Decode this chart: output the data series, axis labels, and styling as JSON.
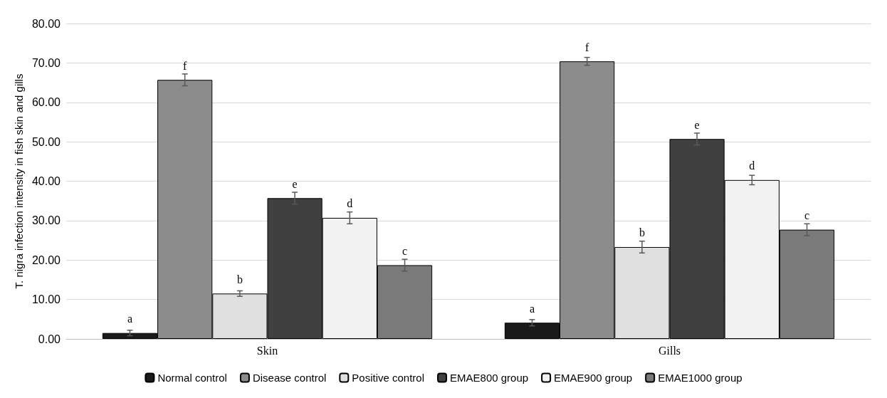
{
  "chart_data": {
    "type": "bar",
    "ylabel": "T. nigra infection intensity in fish skin and gills",
    "categories": [
      "Skin",
      "Gills"
    ],
    "series": [
      {
        "name": "Normal control",
        "color": "#1a1a1a",
        "values": [
          1.5,
          4.1
        ],
        "errors": [
          0.7,
          0.8
        ],
        "value_labels": [
          "a",
          "a"
        ]
      },
      {
        "name": "Disease control",
        "color": "#8c8c8c",
        "values": [
          65.7,
          70.4
        ],
        "errors": [
          1.5,
          1.0
        ],
        "value_labels": [
          "f",
          "f"
        ]
      },
      {
        "name": "Positive control",
        "color": "#e0e0e0",
        "values": [
          11.5,
          23.3
        ],
        "errors": [
          0.7,
          1.5
        ],
        "value_labels": [
          "b",
          "b"
        ]
      },
      {
        "name": "EMAE800 group",
        "color": "#404040",
        "values": [
          35.7,
          50.7
        ],
        "errors": [
          1.5,
          1.5
        ],
        "value_labels": [
          "e",
          "e"
        ]
      },
      {
        "name": "EMAE900 group",
        "color": "#f2f2f2",
        "values": [
          30.7,
          40.3
        ],
        "errors": [
          1.5,
          1.2
        ],
        "value_labels": [
          "d",
          "d"
        ]
      },
      {
        "name": "EMAE1000 group",
        "color": "#7a7a7a",
        "values": [
          18.7,
          27.7
        ],
        "errors": [
          1.5,
          1.5
        ],
        "value_labels": [
          "c",
          "c"
        ]
      }
    ],
    "ylim": [
      0,
      80
    ],
    "yticks": [
      {
        "value": 0,
        "label": "0.00"
      },
      {
        "value": 10,
        "label": "10.00"
      },
      {
        "value": 20,
        "label": "20.00"
      },
      {
        "value": 30,
        "label": "30.00"
      },
      {
        "value": 40,
        "label": "40.00"
      },
      {
        "value": 50,
        "label": "50.00"
      },
      {
        "value": 60,
        "label": "60.00"
      },
      {
        "value": 70,
        "label": "70.00"
      },
      {
        "value": 80,
        "label": "80.00"
      }
    ],
    "grid": "y",
    "legend": "bottom"
  }
}
